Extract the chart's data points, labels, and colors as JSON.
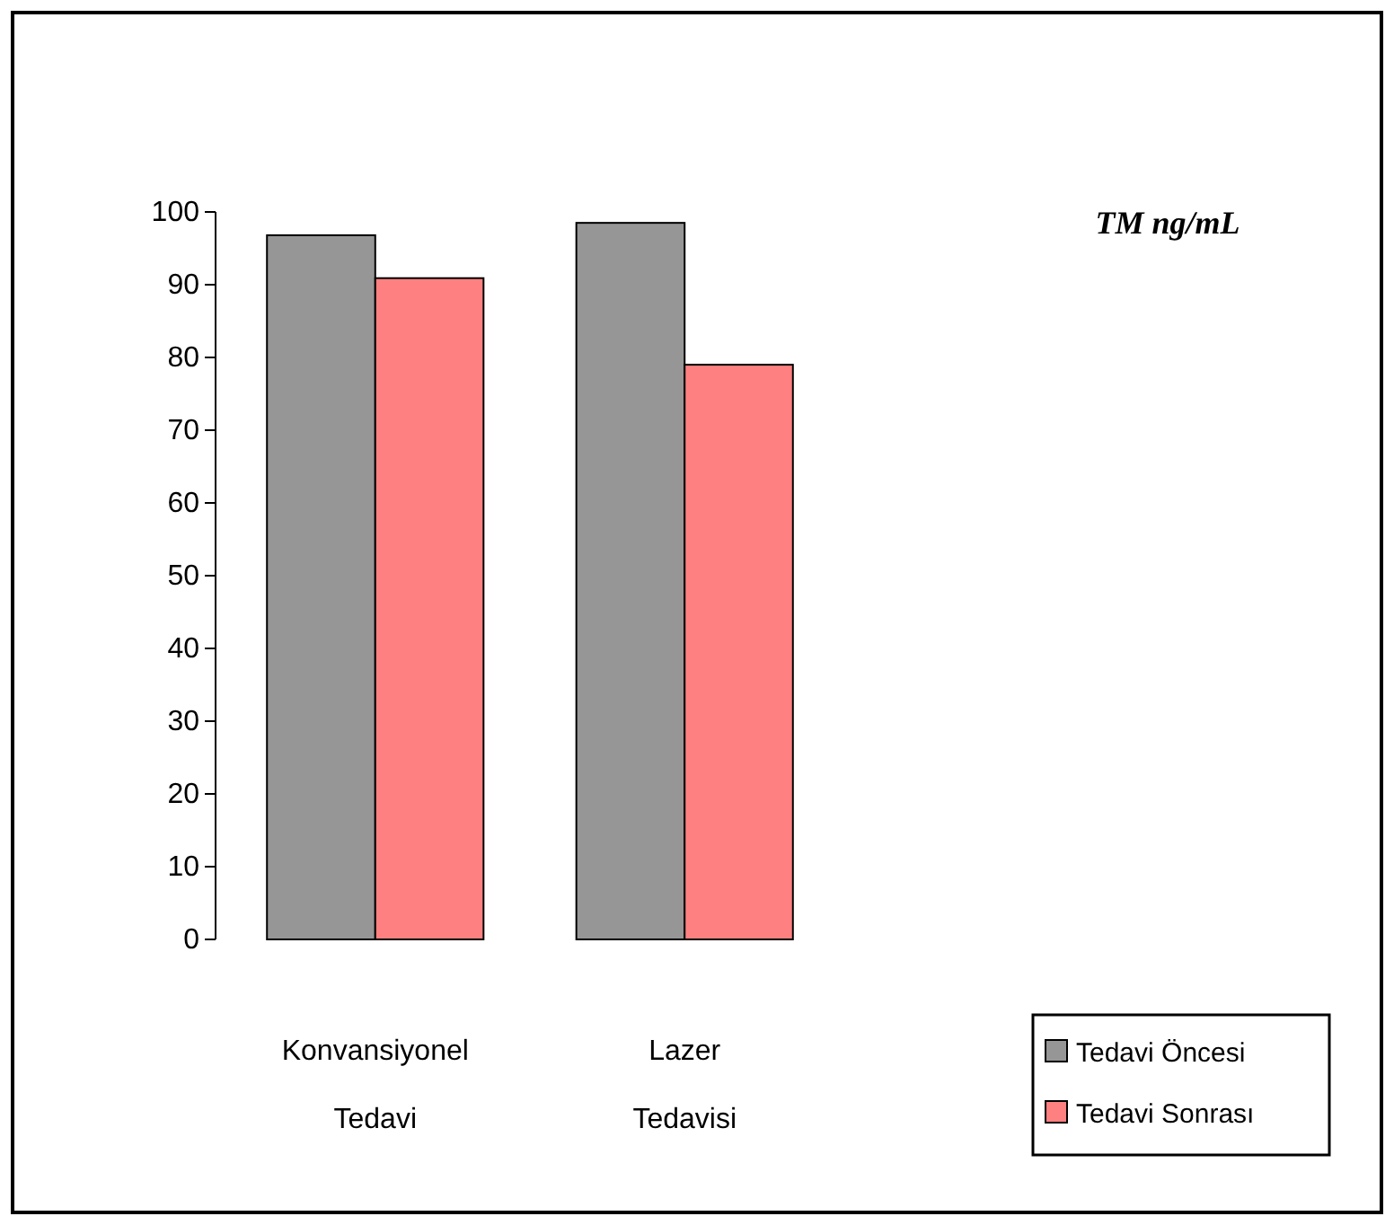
{
  "chart_data": {
    "type": "bar",
    "title": "TM ng/mL",
    "categories": [
      "Konvansiyonel Tedavi",
      "Lazer Tedavisi"
    ],
    "series": [
      {
        "name": "Tedavi Öncesi",
        "color": "#969696",
        "values": [
          96.8,
          98.5
        ]
      },
      {
        "name": "Tedavi Sonrası",
        "color": "#ff8080",
        "values": [
          90.9,
          79
        ]
      }
    ],
    "ylim": [
      0,
      100
    ],
    "yticks": [
      0,
      10,
      20,
      30,
      40,
      50,
      60,
      70,
      80,
      90,
      100
    ],
    "legend": "right"
  }
}
